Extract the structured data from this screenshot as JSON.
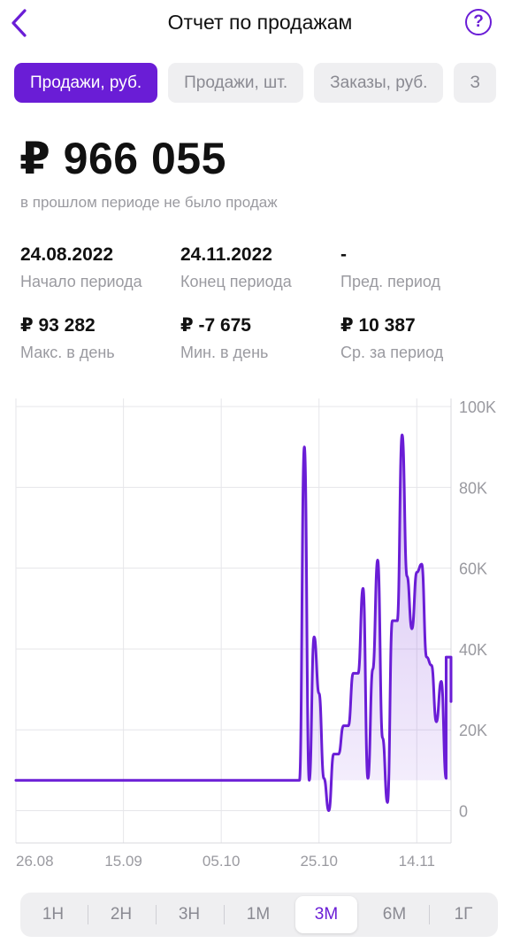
{
  "header": {
    "title": "Отчет по продажам",
    "help_label": "?"
  },
  "tabs": [
    {
      "label": "Продажи, руб.",
      "active": true
    },
    {
      "label": "Продажи, шт.",
      "active": false
    },
    {
      "label": "Заказы, руб.",
      "active": false
    },
    {
      "label": "З",
      "active": false
    }
  ],
  "summary": {
    "total": "₽ 966 055",
    "subtitle": "в прошлом периоде не было продаж"
  },
  "stats": {
    "start": {
      "value": "24.08.2022",
      "label": "Начало периода"
    },
    "end": {
      "value": "24.11.2022",
      "label": "Конец периода"
    },
    "prev": {
      "value": "-",
      "label": "Пред. период"
    },
    "max": {
      "value": "₽ 93 282",
      "label": "Макс. в день"
    },
    "min": {
      "value": "₽ -7 675",
      "label": "Мин. в день"
    },
    "avg": {
      "value": "₽ 10 387",
      "label": "Ср. за период"
    }
  },
  "chart_data": {
    "type": "area",
    "x_ticks": [
      "26.08",
      "15.09",
      "05.10",
      "25.10",
      "14.11"
    ],
    "y_ticks": [
      "100K",
      "80K",
      "60K",
      "40K",
      "20K",
      "0"
    ],
    "y_tick_values": [
      100000,
      80000,
      60000,
      40000,
      20000,
      0
    ],
    "ylim": [
      -8000,
      102000
    ],
    "x_start": "2022-08-24",
    "x_end": "2022-11-21",
    "grid": true,
    "line_color": "#6a1dd6",
    "series": [
      {
        "values": [
          [
            "2022-08-24",
            7500
          ],
          [
            "2022-10-21",
            7500
          ],
          [
            "2022-10-22",
            90000
          ],
          [
            "2022-10-23",
            7500
          ],
          [
            "2022-10-24",
            43000
          ],
          [
            "2022-10-25",
            29000
          ],
          [
            "2022-10-26",
            8000
          ],
          [
            "2022-10-27",
            0
          ],
          [
            "2022-10-28",
            14000
          ],
          [
            "2022-10-29",
            14000
          ],
          [
            "2022-10-30",
            21000
          ],
          [
            "2022-10-31",
            21000
          ],
          [
            "2022-11-01",
            34000
          ],
          [
            "2022-11-02",
            34000
          ],
          [
            "2022-11-03",
            55000
          ],
          [
            "2022-11-04",
            8000
          ],
          [
            "2022-11-05",
            35000
          ],
          [
            "2022-11-06",
            62000
          ],
          [
            "2022-11-07",
            18000
          ],
          [
            "2022-11-08",
            2000
          ],
          [
            "2022-11-09",
            47000
          ],
          [
            "2022-11-10",
            47000
          ],
          [
            "2022-11-11",
            93000
          ],
          [
            "2022-11-12",
            58000
          ],
          [
            "2022-11-13",
            45000
          ],
          [
            "2022-11-14",
            59000
          ],
          [
            "2022-11-15",
            61000
          ],
          [
            "2022-11-16",
            38000
          ],
          [
            "2022-11-17",
            36000
          ],
          [
            "2022-11-18",
            22000
          ],
          [
            "2022-11-19",
            32000
          ],
          [
            "2022-11-20",
            8000
          ],
          [
            "2022-11-20",
            38000
          ],
          [
            "2022-11-21",
            38000
          ],
          [
            "2022-11-21",
            27000
          ]
        ]
      }
    ]
  },
  "periods": [
    {
      "label": "1Н",
      "active": false
    },
    {
      "label": "2Н",
      "active": false
    },
    {
      "label": "3Н",
      "active": false
    },
    {
      "label": "1М",
      "active": false
    },
    {
      "label": "3М",
      "active": true
    },
    {
      "label": "6М",
      "active": false
    },
    {
      "label": "1Г",
      "active": false
    }
  ]
}
